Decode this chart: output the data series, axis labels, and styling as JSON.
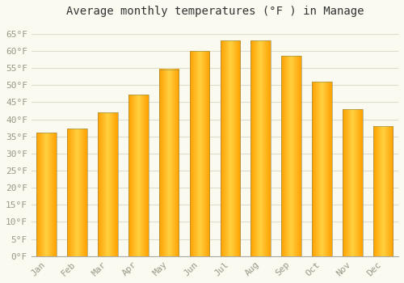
{
  "months": [
    "Jan",
    "Feb",
    "Mar",
    "Apr",
    "May",
    "Jun",
    "Jul",
    "Aug",
    "Sep",
    "Oct",
    "Nov",
    "Dec"
  ],
  "values": [
    36.0,
    37.2,
    42.0,
    47.2,
    54.6,
    60.0,
    63.0,
    63.0,
    58.5,
    51.0,
    43.0,
    38.0
  ],
  "title": "Average monthly temperatures (°F ) in Manage",
  "bar_color_center": "#FFD040",
  "bar_color_edge": "#FFA000",
  "bar_outline_color": "#888855",
  "ylim": [
    0,
    68
  ],
  "yticks": [
    0,
    5,
    10,
    15,
    20,
    25,
    30,
    35,
    40,
    45,
    50,
    55,
    60,
    65
  ],
  "ytick_labels": [
    "0°F",
    "5°F",
    "10°F",
    "15°F",
    "20°F",
    "25°F",
    "30°F",
    "35°F",
    "40°F",
    "45°F",
    "50°F",
    "55°F",
    "60°F",
    "65°F"
  ],
  "background_color": "#FAFAF0",
  "grid_color": "#DDDDCC",
  "title_fontsize": 10,
  "tick_fontsize": 8,
  "font_color": "#999988"
}
